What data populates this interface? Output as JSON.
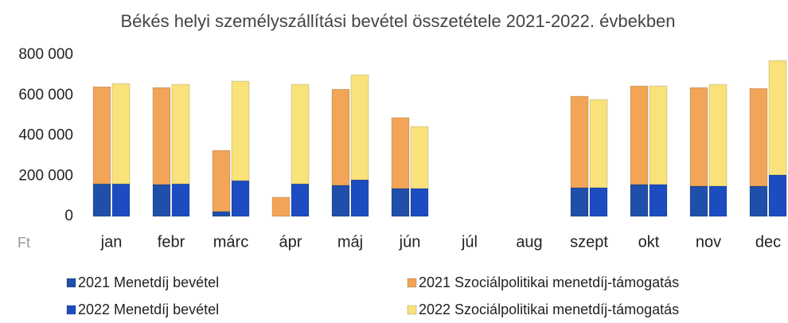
{
  "chart_data": {
    "type": "bar",
    "stacked": true,
    "title": "Békés helyi személyszállítási bevétel összetétele 2021-2022. évbekben",
    "ylabel": "Ft",
    "categories": [
      "jan",
      "febr",
      "márc",
      "ápr",
      "máj",
      "jún",
      "júl",
      "aug",
      "szept",
      "okt",
      "nov",
      "dec"
    ],
    "series": [
      {
        "name": "2021 Menetdíj bevétel",
        "color": "#1f4fa8",
        "stack": 0,
        "values": [
          161000,
          158000,
          24000,
          0,
          154000,
          138000,
          null,
          null,
          142000,
          158000,
          150000,
          150000
        ]
      },
      {
        "name": "2021 Szociálpolitikai menetdíj-támogatás",
        "color": "#f2a556",
        "stack": 0,
        "values": [
          481000,
          480000,
          303000,
          95000,
          476000,
          351000,
          null,
          null,
          453000,
          488000,
          488000,
          484000
        ]
      },
      {
        "name": "2022 Menetdíj bevétel",
        "color": "#1c4cc0",
        "stack": 1,
        "values": [
          161000,
          161000,
          177000,
          161000,
          181000,
          138000,
          null,
          null,
          142000,
          158000,
          150000,
          205000
        ]
      },
      {
        "name": "2022 Szociálpolitikai menetdíj-támogatás",
        "color": "#f9e27a",
        "stack": 1,
        "values": [
          497000,
          493000,
          493000,
          493000,
          520000,
          307000,
          null,
          null,
          437000,
          488000,
          504000,
          567000
        ]
      }
    ],
    "ylim": [
      0,
      800000
    ],
    "yticks": [
      0,
      {
        "value": 200000,
        "label": "200 000"
      },
      {
        "value": 400000,
        "label": "400 000"
      },
      {
        "value": 600000,
        "label": "600 000"
      },
      {
        "value": 800000,
        "label": "800 000"
      }
    ],
    "grid": false
  }
}
